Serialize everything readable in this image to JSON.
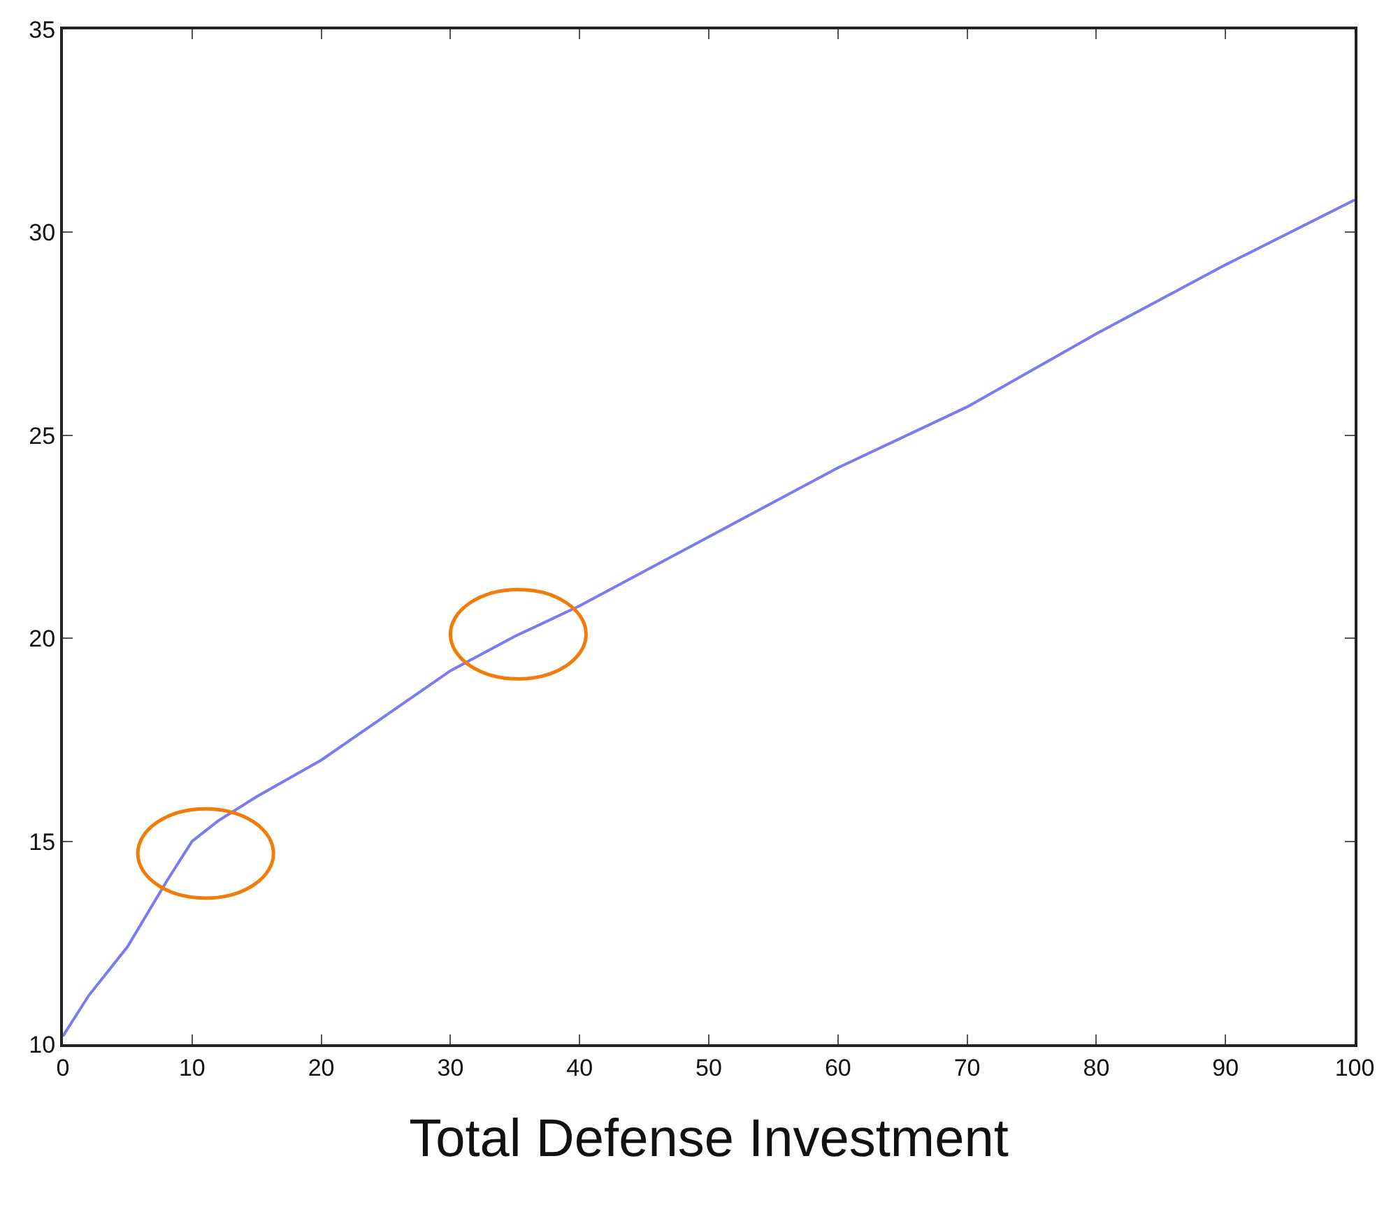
{
  "chart_data": {
    "type": "line",
    "xlabel": "Total Defense Investment",
    "x": [
      0,
      2,
      5,
      8,
      10,
      12,
      15,
      20,
      25,
      30,
      35,
      40,
      50,
      60,
      70,
      80,
      90,
      100
    ],
    "series": [
      {
        "color": "#7b7bf0",
        "values": [
          10.2,
          11.2,
          12.4,
          14.0,
          15.0,
          15.5,
          16.1,
          17.0,
          18.1,
          19.2,
          20.05,
          20.8,
          22.5,
          24.2,
          25.7,
          27.5,
          29.2,
          30.8
        ]
      }
    ],
    "xlim": [
      0,
      100
    ],
    "ylim": [
      10,
      35
    ],
    "xticks": [
      0,
      10,
      20,
      30,
      40,
      50,
      60,
      70,
      80,
      90,
      100
    ],
    "yticks": [
      10,
      15,
      20,
      25,
      30,
      35
    ],
    "line_style": "solid",
    "marker": "none"
  }
}
